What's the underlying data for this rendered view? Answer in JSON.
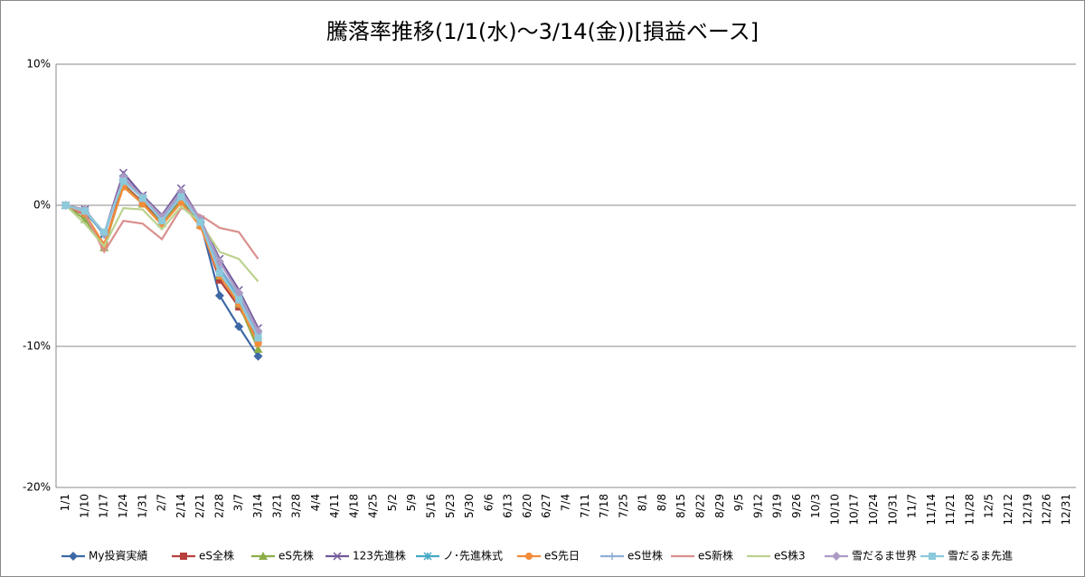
{
  "chart_data": {
    "type": "line",
    "title": "騰落率推移(1/1(水)～3/14(金))[損益ベース]",
    "categories": [
      "1/1",
      "1/10",
      "1/17",
      "1/24",
      "1/31",
      "2/7",
      "2/14",
      "2/21",
      "2/28",
      "3/7",
      "3/14",
      "3/21",
      "3/28",
      "4/4",
      "4/11",
      "4/18",
      "4/25",
      "5/2",
      "5/9",
      "5/16",
      "5/23",
      "5/30",
      "6/6",
      "6/13",
      "6/20",
      "6/27",
      "7/4",
      "7/11",
      "7/18",
      "7/25",
      "8/1",
      "8/8",
      "8/15",
      "8/22",
      "8/29",
      "9/5",
      "9/12",
      "9/19",
      "9/26",
      "10/3",
      "10/10",
      "10/17",
      "10/24",
      "10/31",
      "11/7",
      "11/14",
      "11/21",
      "11/28",
      "12/5",
      "12/12",
      "12/19",
      "12/26",
      "12/31"
    ],
    "ylim": [
      -20,
      10
    ],
    "yticks": [
      {
        "value": -20,
        "label": "-20%"
      },
      {
        "value": -10,
        "label": "-10%"
      },
      {
        "value": 0,
        "label": "0%"
      },
      {
        "value": 10,
        "label": "10%"
      }
    ],
    "grid": true,
    "legend": "bottom",
    "series": [
      {
        "name": "My投資実績",
        "color": "#3d68a5",
        "marker": "diamond",
        "values": [
          0,
          -0.5,
          -2.0,
          1.8,
          0.5,
          -1.0,
          0.7,
          -1.2,
          -6.4,
          -8.6,
          -10.7,
          null,
          null,
          null,
          null,
          null,
          null,
          null,
          null,
          null,
          null,
          null,
          null,
          null,
          null,
          null,
          null,
          null,
          null,
          null,
          null,
          null,
          null,
          null,
          null,
          null,
          null,
          null,
          null,
          null,
          null,
          null,
          null,
          null,
          null,
          null,
          null,
          null,
          null,
          null,
          null,
          null,
          null
        ]
      },
      {
        "name": "eS全株",
        "color": "#b7403d",
        "marker": "square",
        "values": [
          0,
          -0.7,
          -2.8,
          1.5,
          0.2,
          -1.2,
          0.5,
          -1.3,
          -5.3,
          -7.2,
          -9.6,
          null,
          null,
          null,
          null,
          null,
          null,
          null,
          null,
          null,
          null,
          null,
          null,
          null,
          null,
          null,
          null,
          null,
          null,
          null,
          null,
          null,
          null,
          null,
          null,
          null,
          null,
          null,
          null,
          null,
          null,
          null,
          null,
          null,
          null,
          null,
          null,
          null,
          null,
          null,
          null,
          null,
          null
        ]
      },
      {
        "name": "eS先株",
        "color": "#8cae48",
        "marker": "triangle",
        "values": [
          0,
          -1.0,
          -3.0,
          1.4,
          0.1,
          -1.3,
          0.3,
          -1.4,
          -5.0,
          -7.0,
          -10.2,
          null,
          null,
          null,
          null,
          null,
          null,
          null,
          null,
          null,
          null,
          null,
          null,
          null,
          null,
          null,
          null,
          null,
          null,
          null,
          null,
          null,
          null,
          null,
          null,
          null,
          null,
          null,
          null,
          null,
          null,
          null,
          null,
          null,
          null,
          null,
          null,
          null,
          null,
          null,
          null,
          null,
          null
        ]
      },
      {
        "name": "123先進株",
        "color": "#71589a",
        "marker": "x",
        "values": [
          0,
          -0.3,
          -2.0,
          2.3,
          0.7,
          -0.7,
          1.2,
          -1.0,
          -3.8,
          -6.0,
          -8.7,
          null,
          null,
          null,
          null,
          null,
          null,
          null,
          null,
          null,
          null,
          null,
          null,
          null,
          null,
          null,
          null,
          null,
          null,
          null,
          null,
          null,
          null,
          null,
          null,
          null,
          null,
          null,
          null,
          null,
          null,
          null,
          null,
          null,
          null,
          null,
          null,
          null,
          null,
          null,
          null,
          null,
          null
        ]
      },
      {
        "name": "ノ･先進株式",
        "color": "#45a9c4",
        "marker": "star",
        "values": [
          0,
          -0.4,
          -2.1,
          1.9,
          0.5,
          -0.9,
          0.8,
          -1.1,
          -4.5,
          -6.5,
          -9.2,
          null,
          null,
          null,
          null,
          null,
          null,
          null,
          null,
          null,
          null,
          null,
          null,
          null,
          null,
          null,
          null,
          null,
          null,
          null,
          null,
          null,
          null,
          null,
          null,
          null,
          null,
          null,
          null,
          null,
          null,
          null,
          null,
          null,
          null,
          null,
          null,
          null,
          null,
          null,
          null,
          null,
          null
        ]
      },
      {
        "name": "eS先日",
        "color": "#f38c3a",
        "marker": "circle",
        "values": [
          0,
          -0.6,
          -2.8,
          1.3,
          0.1,
          -1.4,
          0.2,
          -1.5,
          -5.0,
          -7.0,
          -9.8,
          null,
          null,
          null,
          null,
          null,
          null,
          null,
          null,
          null,
          null,
          null,
          null,
          null,
          null,
          null,
          null,
          null,
          null,
          null,
          null,
          null,
          null,
          null,
          null,
          null,
          null,
          null,
          null,
          null,
          null,
          null,
          null,
          null,
          null,
          null,
          null,
          null,
          null,
          null,
          null,
          null,
          null
        ]
      },
      {
        "name": "eS世株",
        "color": "#8eaed6",
        "marker": "plus",
        "values": [
          0,
          -0.4,
          -2.0,
          1.8,
          0.5,
          -0.9,
          0.8,
          -1.1,
          -4.4,
          -6.4,
          -9.1,
          null,
          null,
          null,
          null,
          null,
          null,
          null,
          null,
          null,
          null,
          null,
          null,
          null,
          null,
          null,
          null,
          null,
          null,
          null,
          null,
          null,
          null,
          null,
          null,
          null,
          null,
          null,
          null,
          null,
          null,
          null,
          null,
          null,
          null,
          null,
          null,
          null,
          null,
          null,
          null,
          null,
          null
        ]
      },
      {
        "name": "eS新株",
        "color": "#d9908d",
        "marker": "none",
        "values": [
          0,
          -0.6,
          -3.3,
          -1.1,
          -1.3,
          -2.4,
          -0.2,
          -0.7,
          -1.6,
          -1.9,
          -3.8,
          null,
          null,
          null,
          null,
          null,
          null,
          null,
          null,
          null,
          null,
          null,
          null,
          null,
          null,
          null,
          null,
          null,
          null,
          null,
          null,
          null,
          null,
          null,
          null,
          null,
          null,
          null,
          null,
          null,
          null,
          null,
          null,
          null,
          null,
          null,
          null,
          null,
          null,
          null,
          null,
          null,
          null
        ]
      },
      {
        "name": "eS株3",
        "color": "#bcd28f",
        "marker": "none",
        "values": [
          0,
          -1.3,
          -2.9,
          -0.2,
          -0.3,
          -1.7,
          -0.1,
          -1.2,
          -3.3,
          -3.8,
          -5.4,
          null,
          null,
          null,
          null,
          null,
          null,
          null,
          null,
          null,
          null,
          null,
          null,
          null,
          null,
          null,
          null,
          null,
          null,
          null,
          null,
          null,
          null,
          null,
          null,
          null,
          null,
          null,
          null,
          null,
          null,
          null,
          null,
          null,
          null,
          null,
          null,
          null,
          null,
          null,
          null,
          null,
          null
        ]
      },
      {
        "name": "雪だるま世界",
        "color": "#ad9ac4",
        "marker": "diamond",
        "values": [
          0,
          -0.3,
          -2.0,
          2.0,
          0.6,
          -0.8,
          1.0,
          -1.0,
          -4.0,
          -6.2,
          -8.9,
          null,
          null,
          null,
          null,
          null,
          null,
          null,
          null,
          null,
          null,
          null,
          null,
          null,
          null,
          null,
          null,
          null,
          null,
          null,
          null,
          null,
          null,
          null,
          null,
          null,
          null,
          null,
          null,
          null,
          null,
          null,
          null,
          null,
          null,
          null,
          null,
          null,
          null,
          null,
          null,
          null,
          null
        ]
      },
      {
        "name": "雪だるま先進",
        "color": "#8ccadb",
        "marker": "square",
        "values": [
          0,
          -0.4,
          -1.9,
          1.7,
          0.5,
          -1.1,
          0.6,
          -1.2,
          -4.8,
          -6.7,
          -9.4,
          null,
          null,
          null,
          null,
          null,
          null,
          null,
          null,
          null,
          null,
          null,
          null,
          null,
          null,
          null,
          null,
          null,
          null,
          null,
          null,
          null,
          null,
          null,
          null,
          null,
          null,
          null,
          null,
          null,
          null,
          null,
          null,
          null,
          null,
          null,
          null,
          null,
          null,
          null,
          null,
          null,
          null
        ]
      }
    ]
  }
}
